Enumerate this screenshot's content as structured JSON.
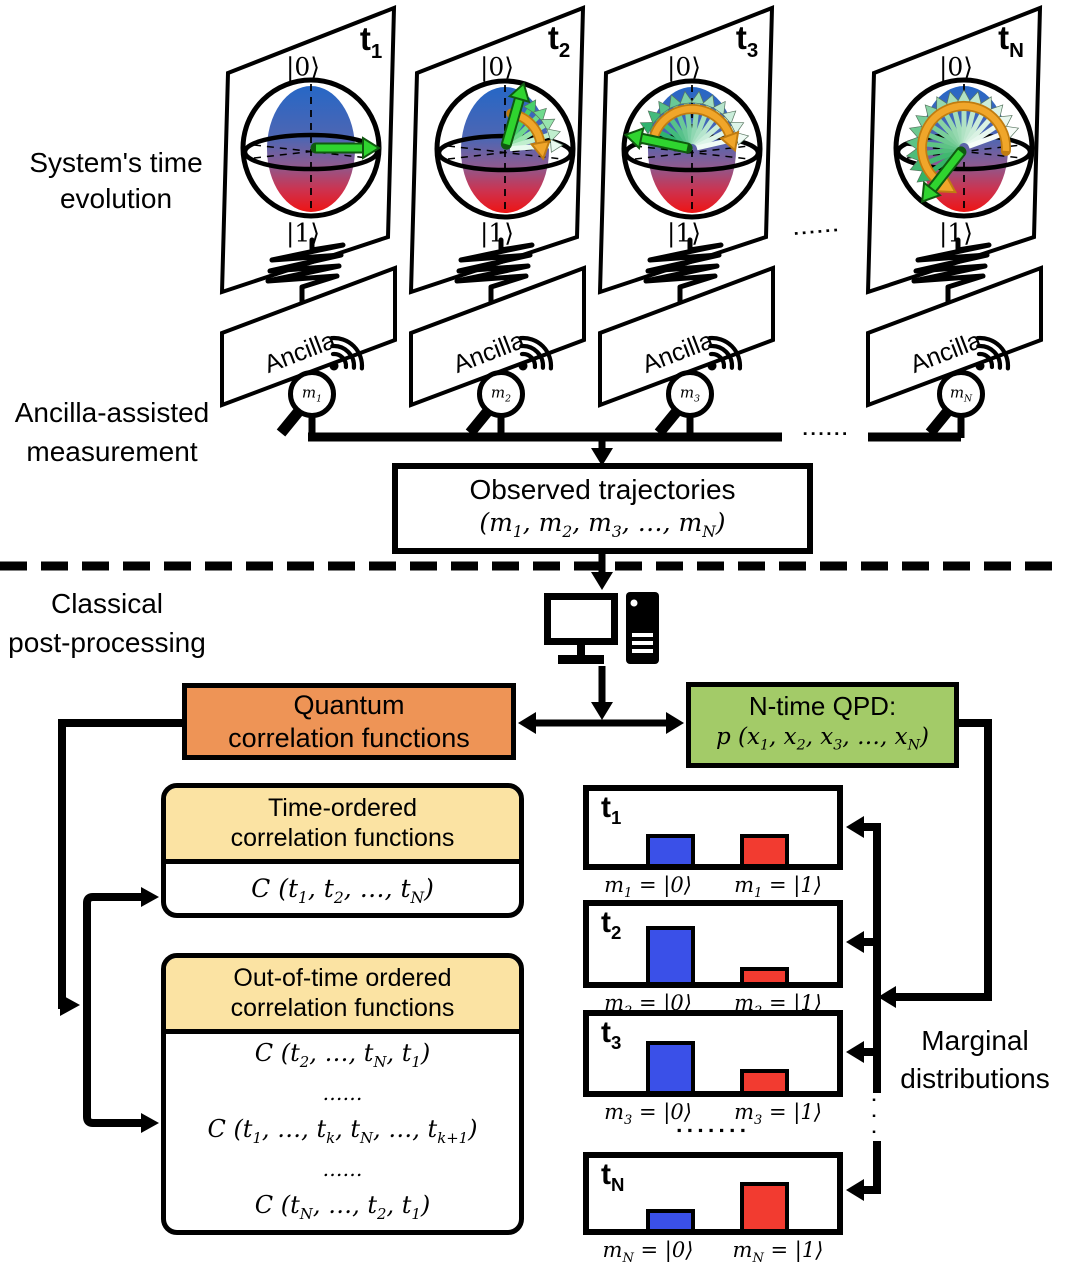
{
  "figure": {
    "left_labels": {
      "system": [
        "System's time",
        "evolution"
      ],
      "ancilla": [
        "Ancilla-assisted",
        "measurement"
      ],
      "classical": [
        "Classical",
        "post-processing"
      ]
    },
    "marginal_label": [
      "Marginal",
      "distributions"
    ],
    "panels": [
      {
        "time": "t_1",
        "ket_top": "|0⟩",
        "ket_bottom": "|1⟩",
        "plate": "Ancilla",
        "meter": "m_1"
      },
      {
        "time": "t_2",
        "ket_top": "|0⟩",
        "ket_bottom": "|1⟩",
        "plate": "Ancilla",
        "meter": "m_2"
      },
      {
        "time": "t_3",
        "ket_top": "|0⟩",
        "ket_bottom": "|1⟩",
        "plate": "Ancilla",
        "meter": "m_3"
      },
      {
        "time": "t_N",
        "ket_top": "|0⟩",
        "ket_bottom": "|1⟩",
        "plate": "Ancilla",
        "meter": "m_N"
      }
    ],
    "ellipsis": {
      "six": "▪▪▪▪▪▪",
      "seven": "▪▪▪▪▪▪▪",
      "vertical": "▪▪▪"
    },
    "observed": {
      "title": "Observed trajectories",
      "formula": "(m_1, m_2, m_3, …, m_N)"
    },
    "quantum_box": {
      "line1": "Quantum",
      "line2": "correlation functions"
    },
    "qpd_box": {
      "line1": "N-time QPD:",
      "formula": "p (x_1, x_2, x_3, …, x_N)"
    },
    "time_ordered": {
      "header1": "Time-ordered",
      "header2": "correlation functions",
      "formula": "C (t_1, t_2, …, t_N)"
    },
    "otoc": {
      "header1": "Out-of-time ordered",
      "header2": "correlation functions",
      "rows": [
        "C (t_2, …, t_N, t_1)",
        "……",
        "C (t_1, …, t_k, t_N, …, t_{k+1})",
        "……",
        "C (t_N, …, t_2, t_1)"
      ]
    },
    "histograms": [
      {
        "time": "t_1",
        "label0": "m_1 = |0⟩",
        "label1": "m_1 = |1⟩",
        "p0": 30,
        "p1": 30
      },
      {
        "time": "t_2",
        "label0": "m_2 = |0⟩",
        "label1": "m_2 = |1⟩",
        "p0": 56,
        "p1": 15
      },
      {
        "time": "t_3",
        "label0": "m_3 = |0⟩",
        "label1": "m_3 = |1⟩",
        "p0": 50,
        "p1": 22
      },
      {
        "time": "t_N",
        "label0": "m_N = |0⟩",
        "label1": "m_N = |1⟩",
        "p0": 20,
        "p1": 47
      }
    ],
    "colors": {
      "quantum_box": "#EE9456",
      "qpd_box": "#A3CB68",
      "corr_header": "#FBE3A3",
      "bar_blue": "#3A50E8",
      "bar_red": "#F23B30",
      "bloch_top": "#2667C6",
      "bloch_bottom": "#EE1414",
      "state_arrow": "#2FD42F",
      "rotation_arc": "#F0A62A",
      "line": "#000000"
    }
  }
}
